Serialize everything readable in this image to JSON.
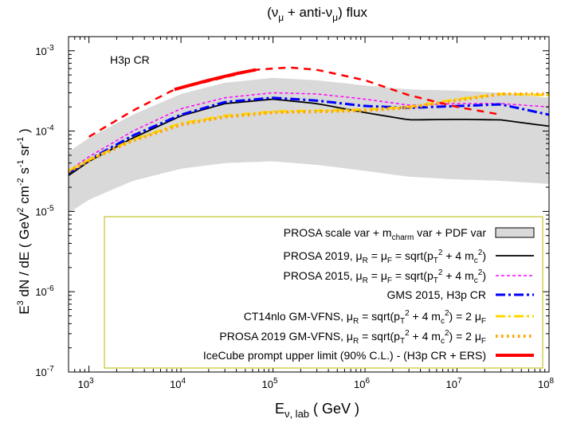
{
  "chart_data": {
    "type": "line",
    "title": "(ν_μ + anti-ν_μ)  flux",
    "annotation": "H3p CR",
    "xlabel": "E_ν, lab  ( GeV )",
    "ylabel": "E^3 dN / dE   ( GeV^2 cm^-2 s^-1 sr^-1 )",
    "xscale": "log",
    "yscale": "log",
    "xlim": [
      600,
      100000000
    ],
    "ylim": [
      1e-07,
      0.0015
    ],
    "x_ticks": [
      {
        "value": 1000,
        "base": "10",
        "exp": "3"
      },
      {
        "value": 10000,
        "base": "10",
        "exp": "4"
      },
      {
        "value": 100000,
        "base": "10",
        "exp": "5"
      },
      {
        "value": 1000000,
        "base": "10",
        "exp": "6"
      },
      {
        "value": 10000000,
        "base": "10",
        "exp": "7"
      },
      {
        "value": 100000000,
        "base": "10",
        "exp": "8"
      }
    ],
    "y_ticks": [
      {
        "value": 1e-07,
        "base": "10",
        "exp": "-7"
      },
      {
        "value": 1e-06,
        "base": "10",
        "exp": "-6"
      },
      {
        "value": 1e-05,
        "base": "10",
        "exp": "-5"
      },
      {
        "value": 0.0001,
        "base": "10",
        "exp": "-4"
      },
      {
        "value": 0.001,
        "base": "10",
        "exp": "-3"
      }
    ],
    "legend_position": "bottom-right",
    "band": {
      "name": "PROSA scale var + m_charm var + PDF var",
      "color": "#d9d9d9",
      "x": [
        600,
        1000,
        3000,
        10000,
        30000,
        100000,
        300000,
        1000000,
        3000000,
        10000000,
        30000000,
        100000000
      ],
      "lower": [
        9.5e-06,
        1.4e-05,
        2.4e-05,
        3.4e-05,
        4e-05,
        4.2e-05,
        3.8e-05,
        3.2e-05,
        2.7e-05,
        2.5e-05,
        2.4e-05,
        2.2e-05
      ],
      "upper": [
        5.5e-05,
        8.2e-05,
        0.00016,
        0.00029,
        0.0004,
        0.00046,
        0.00043,
        0.00037,
        0.00033,
        0.00032,
        0.0003,
        0.00026
      ]
    },
    "series": [
      {
        "name": "PROSA 2019, μ_R = μ_F = sqrt(p_T^2 + 4 m_c^2)",
        "color": "#000000",
        "style": "solid",
        "width": 1.8,
        "x": [
          600,
          1000,
          3000,
          10000,
          30000,
          100000,
          300000,
          1000000,
          3000000,
          10000000,
          30000000,
          100000000
        ],
        "y": [
          2.8e-05,
          4.2e-05,
          8.2e-05,
          0.000155,
          0.00022,
          0.00025,
          0.00022,
          0.00017,
          0.000138,
          0.00014,
          0.000138,
          0.000115
        ]
      },
      {
        "name": "PROSA 2015, μ_R = μ_F = sqrt(p_T^2 + 4 m_c^2)",
        "color": "#ff00ff",
        "style": "dashed-fine",
        "width": 1.5,
        "x": [
          600,
          1000,
          3000,
          10000,
          30000,
          100000,
          300000,
          1000000,
          3000000,
          10000000,
          30000000,
          100000000
        ],
        "y": [
          3.2e-05,
          4.8e-05,
          0.0001,
          0.00019,
          0.00026,
          0.0003,
          0.00029,
          0.00025,
          0.00021,
          0.00022,
          0.00022,
          0.0002
        ]
      },
      {
        "name": "GMS 2015, H3p CR",
        "color": "#0000ff",
        "style": "dash-dot",
        "width": 3,
        "x": [
          600,
          1000,
          3000,
          10000,
          30000,
          100000,
          300000,
          1000000,
          3000000,
          10000000,
          30000000,
          100000000
        ],
        "y": [
          3e-05,
          4.4e-05,
          8.8e-05,
          0.00016,
          0.00023,
          0.00026,
          0.00024,
          0.000205,
          0.000195,
          0.000205,
          0.000215,
          0.00016
        ]
      },
      {
        "name": "CT14nlo GM-VFNS, μ_R = sqrt(p_T^2 + 4 m_c^2) = 2 μ_F",
        "color": "#ffd700",
        "style": "dash-dot",
        "width": 3,
        "x": [
          600,
          1000,
          3000,
          10000,
          30000,
          100000,
          300000,
          1000000,
          3000000,
          10000000,
          30000000,
          100000000
        ],
        "y": [
          3.2e-05,
          4.4e-05,
          7.8e-05,
          0.000125,
          0.000155,
          0.000175,
          0.00018,
          0.000185,
          0.0002,
          0.00025,
          0.00029,
          0.00028
        ]
      },
      {
        "name": "PROSA 2019 GM-VFNS, μ_R = sqrt(p_T^2 + 4 m_c^2) = 2 μ_F",
        "color": "#ffa500",
        "style": "dotted-thick",
        "width": 4,
        "x": [
          600,
          1000,
          3000,
          10000,
          30000,
          100000,
          300000,
          1000000,
          3000000,
          10000000,
          30000000,
          100000000
        ],
        "y": [
          3.1e-05,
          4.3e-05,
          7.6e-05,
          0.00012,
          0.00015,
          0.00017,
          0.000175,
          0.00018,
          0.000195,
          0.00024,
          0.00029,
          0.00029
        ]
      },
      {
        "name": "IceCube prompt upper limit (90% C.L.) - (H3p CR + ERS)",
        "color": "#ff0000",
        "style": "solid-thick",
        "width": 4,
        "x": [
          8500,
          20000,
          40000,
          65000
        ],
        "y": [
          0.00033,
          0.00043,
          0.00052,
          0.00058
        ]
      },
      {
        "name": "",
        "color": "#ff0000",
        "style": "dashed",
        "width": 2.5,
        "x": [
          1000,
          3000,
          8500,
          65000,
          150000,
          300000,
          1000000,
          3000000,
          10000000,
          30000000
        ],
        "y": [
          8.5e-05,
          0.00018,
          0.00033,
          0.00058,
          0.00062,
          0.00058,
          0.00043,
          0.00028,
          0.0002,
          0.00016
        ]
      }
    ],
    "legend": [
      {
        "pre": "PROSA scale var + m",
        "sub": "charm",
        "post": " var + PDF var",
        "sample": "box",
        "ref": 0
      },
      {
        "text": "PROSA 2019, μR = μF = sqrt(pT2 + 4 mc2)",
        "sample": "line",
        "ref": 0
      },
      {
        "text": "PROSA 2015, μR = μF = sqrt(pT2 + 4 mc2)",
        "sample": "line",
        "ref": 1
      },
      {
        "text": "GMS 2015, H3p CR",
        "sample": "line",
        "ref": 2
      },
      {
        "text": "CT14nlo GM-VFNS, μR = sqrt(pT2 + 4 mc2) = 2 μF",
        "sample": "line",
        "ref": 3
      },
      {
        "text": "PROSA 2019 GM-VFNS, μR = sqrt(pT2 + 4 mc2) = 2 μF",
        "sample": "line",
        "ref": 4
      },
      {
        "text": "IceCube prompt upper limit (90% C.L.) - (H3p CR + ERS)",
        "sample": "line",
        "ref": 5
      }
    ]
  }
}
